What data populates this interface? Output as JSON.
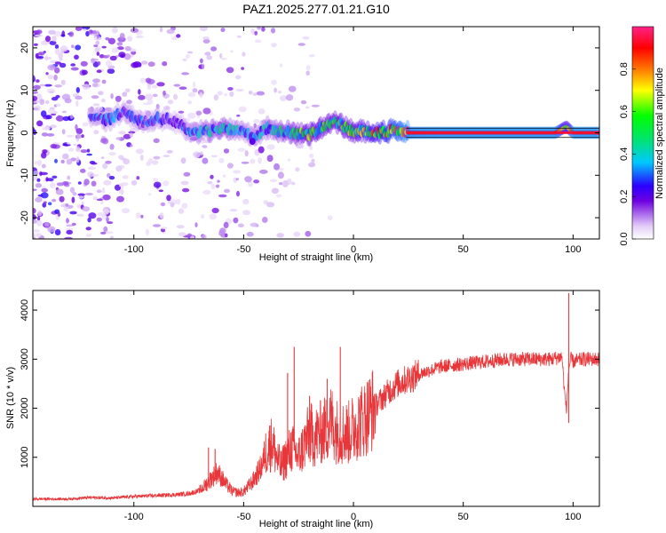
{
  "title": "PAZ1.2025.277.01.21.G10",
  "chart_data": [
    {
      "type": "heatmap",
      "xlabel": "Height of straight line (km)",
      "ylabel": "Frequency (Hz)",
      "xlim": [
        -146,
        112
      ],
      "ylim": [
        -25,
        25
      ],
      "xticks": [
        -100,
        -50,
        0,
        50,
        100
      ],
      "yticks": [
        -20,
        -10,
        0,
        10,
        20
      ],
      "colorbar": {
        "label": "Normalized spectral amplitude",
        "range": [
          0,
          1
        ],
        "ticks": [
          0.0,
          0.2,
          0.4,
          0.6,
          0.8
        ],
        "tick_labels": [
          "0.0",
          "0.2",
          "0.4",
          "0.6",
          "0.8"
        ]
      },
      "ridge": {
        "description": "Dominant frequency track of normalized spectral amplitude",
        "x": [
          -120,
          -112,
          -104,
          -96,
          -88,
          -80,
          -74,
          -66,
          -58,
          -50,
          -45,
          -40,
          -34,
          -28,
          -20,
          -12,
          -8,
          -4,
          0,
          6,
          12,
          18,
          24,
          30,
          40,
          60,
          80,
          92,
          97,
          100,
          112
        ],
        "frequency": [
          3.5,
          3.2,
          5.0,
          2.5,
          3.5,
          2.5,
          0.0,
          0.5,
          1.0,
          0.5,
          -1.0,
          1.0,
          0.5,
          0.0,
          -0.5,
          2.0,
          2.5,
          1.5,
          0.0,
          0.5,
          0.0,
          0.5,
          0.0,
          0.0,
          0.0,
          0.0,
          0.0,
          0.0,
          1.5,
          0.0,
          0.0
        ],
        "amplitude": [
          0.25,
          0.3,
          0.25,
          0.25,
          0.25,
          0.2,
          0.3,
          0.35,
          0.4,
          0.3,
          0.3,
          0.35,
          0.4,
          0.45,
          0.55,
          0.5,
          0.5,
          0.55,
          0.55,
          0.6,
          0.7,
          0.8,
          0.9,
          0.92,
          0.93,
          0.93,
          0.93,
          0.93,
          0.6,
          0.93,
          0.93
        ]
      },
      "side_branch": {
        "x": [
          -46,
          -42,
          -38,
          -35,
          -33,
          -31
        ],
        "frequency": [
          -2,
          -4,
          -6,
          -8,
          -10,
          -12
        ],
        "amplitude": [
          0.2,
          0.15,
          0.12,
          0.1,
          0.08,
          0.06
        ]
      },
      "noise_region_x": [
        -146,
        -35
      ]
    },
    {
      "type": "line",
      "xlabel": "Height of straight line (km)",
      "ylabel": "SNR (10 * v/v)",
      "xlim": [
        -146,
        112
      ],
      "ylim": [
        0,
        4400
      ],
      "xticks": [
        -100,
        -50,
        0,
        50,
        100
      ],
      "yticks": [
        1000,
        2000,
        3000,
        4000
      ],
      "color": "#e8373a",
      "series": [
        {
          "name": "SNR",
          "x": [
            -146,
            -130,
            -120,
            -110,
            -100,
            -90,
            -80,
            -75,
            -70,
            -67,
            -64,
            -62,
            -58,
            -55,
            -52,
            -50,
            -46,
            -42,
            -40,
            -37,
            -35,
            -33,
            -30,
            -28,
            -25,
            -22,
            -20,
            -18,
            -15,
            -12,
            -10,
            -8,
            -5,
            -2,
            0,
            5,
            10,
            15,
            20,
            25,
            30,
            40,
            50,
            60,
            70,
            80,
            90,
            95,
            96,
            97,
            98,
            99,
            100,
            105,
            112
          ],
          "y": [
            150,
            150,
            180,
            170,
            200,
            220,
            240,
            260,
            320,
            450,
            600,
            700,
            450,
            300,
            280,
            300,
            500,
            800,
            1100,
            1300,
            1000,
            800,
            1050,
            1200,
            1000,
            1300,
            1500,
            1400,
            1500,
            1600,
            1750,
            1550,
            1500,
            1500,
            1600,
            1800,
            2050,
            2300,
            2500,
            2600,
            2700,
            2850,
            2900,
            2950,
            3000,
            3000,
            3000,
            3050,
            2400,
            1950,
            2800,
            3000,
            2950,
            3000,
            3000
          ],
          "spikes": [
            {
              "x": -66,
              "y": 1200
            },
            {
              "x": -63,
              "y": 1170
            },
            {
              "x": -38,
              "y": 1650
            },
            {
              "x": -30,
              "y": 2720
            },
            {
              "x": -27,
              "y": 3250
            },
            {
              "x": -20,
              "y": 2250
            },
            {
              "x": -12,
              "y": 2600
            },
            {
              "x": -6,
              "y": 3250
            },
            {
              "x": 98,
              "y": 4350
            },
            {
              "x": 98,
              "y": 1700
            }
          ]
        }
      ]
    }
  ]
}
